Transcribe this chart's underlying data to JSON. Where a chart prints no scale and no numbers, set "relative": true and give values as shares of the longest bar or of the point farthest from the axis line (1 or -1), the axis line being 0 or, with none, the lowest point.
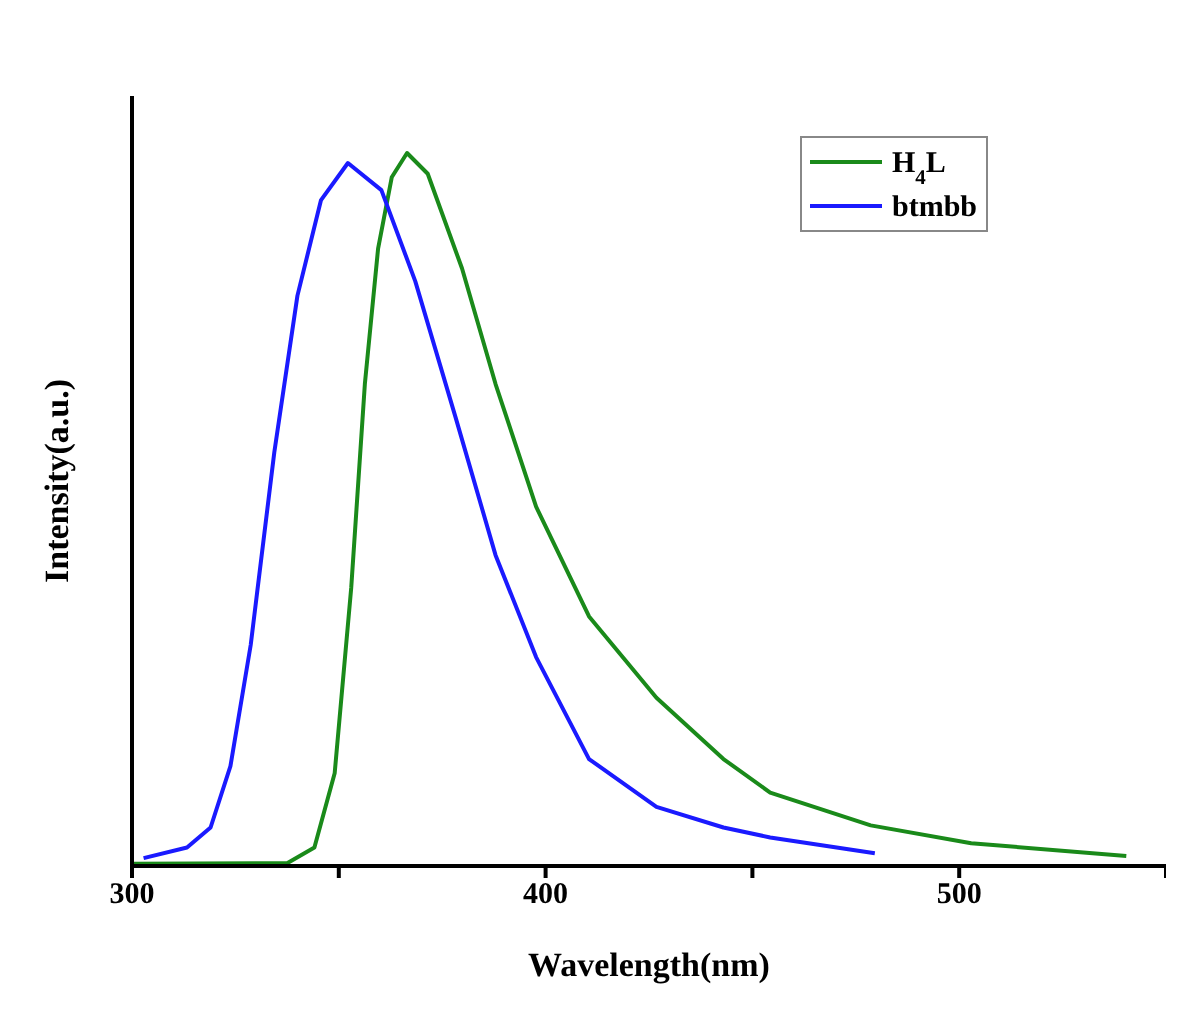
{
  "chart_data": {
    "type": "line",
    "xlabel": "Wavelength(nm)",
    "ylabel": "Intensity(a.u.)",
    "relative": true,
    "xlim": [
      300,
      550
    ],
    "xticks": [
      300,
      {
        "value": 350,
        "label": null
      },
      400,
      {
        "value": 450,
        "label": null
      },
      500,
      {
        "value": 550,
        "label": null
      }
    ],
    "legend": "top right",
    "series": [
      {
        "name": "H$_{4}$L",
        "color": "#1a8a1a",
        "x": [
          300.3,
          337.5,
          344.1,
          349,
          353,
          356.3,
          359.5,
          362.8,
          366.5,
          371.5,
          379.8,
          387.9,
          397.7,
          410.5,
          426.8,
          443,
          454.3,
          478.6,
          502.9,
          540.4
        ],
        "values": [
          0.003,
          0.004,
          0.026,
          0.13,
          0.39,
          0.676,
          0.866,
          0.966,
          1,
          0.971,
          0.838,
          0.676,
          0.504,
          0.35,
          0.236,
          0.15,
          0.103,
          0.057,
          0.032,
          0.014
        ]
      },
      {
        "name": "btmbb",
        "color": "#1a1aff",
        "x": [
          302.8,
          313.3,
          319,
          323.8,
          328.7,
          334.4,
          340,
          345.7,
          352.2,
          360.3,
          368.5,
          378.2,
          387.9,
          397.7,
          410.5,
          426.8,
          443,
          454.3,
          479.6
        ],
        "values": [
          0.011,
          0.026,
          0.054,
          0.14,
          0.31,
          0.58,
          0.8,
          0.934,
          0.986,
          0.948,
          0.82,
          0.63,
          0.436,
          0.293,
          0.15,
          0.083,
          0.054,
          0.04,
          0.018
        ]
      }
    ]
  }
}
